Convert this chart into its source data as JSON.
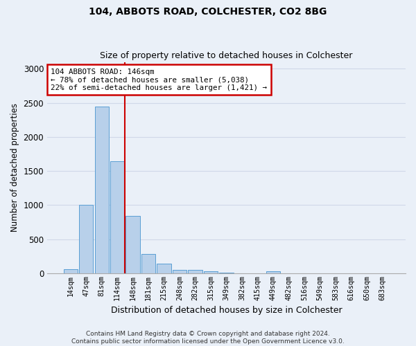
{
  "title1": "104, ABBOTS ROAD, COLCHESTER, CO2 8BG",
  "title2": "Size of property relative to detached houses in Colchester",
  "xlabel": "Distribution of detached houses by size in Colchester",
  "ylabel": "Number of detached properties",
  "bar_labels": [
    "14sqm",
    "47sqm",
    "81sqm",
    "114sqm",
    "148sqm",
    "181sqm",
    "215sqm",
    "248sqm",
    "282sqm",
    "315sqm",
    "349sqm",
    "382sqm",
    "415sqm",
    "449sqm",
    "482sqm",
    "516sqm",
    "549sqm",
    "583sqm",
    "616sqm",
    "650sqm",
    "683sqm"
  ],
  "bar_values": [
    55,
    1000,
    2450,
    1640,
    840,
    280,
    140,
    45,
    45,
    30,
    5,
    0,
    0,
    25,
    0,
    0,
    0,
    0,
    0,
    0,
    0
  ],
  "bar_color": "#b8d0ea",
  "bar_edge_color": "#5a9fd4",
  "annotation_text_line1": "104 ABBOTS ROAD: 146sqm",
  "annotation_text_line2": "← 78% of detached houses are smaller (5,038)",
  "annotation_text_line3": "22% of semi-detached houses are larger (1,421) →",
  "annotation_box_color": "#ffffff",
  "annotation_box_edge_color": "#cc0000",
  "vline_color": "#cc0000",
  "vline_x": 3.5,
  "footer": "Contains HM Land Registry data © Crown copyright and database right 2024.\nContains public sector information licensed under the Open Government Licence v3.0.",
  "ylim": [
    0,
    3100
  ],
  "yticks": [
    0,
    500,
    1000,
    1500,
    2000,
    2500,
    3000
  ],
  "grid_color": "#d0d8e8",
  "bg_color": "#eaf0f8"
}
